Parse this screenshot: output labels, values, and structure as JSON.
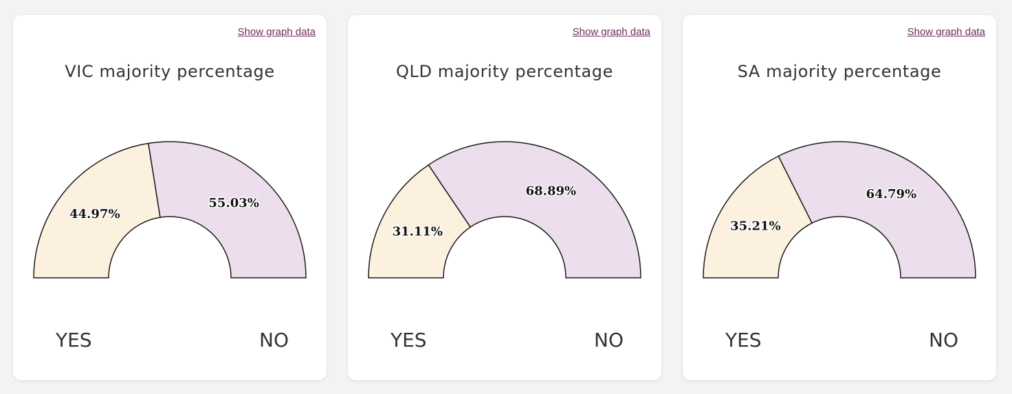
{
  "graph_link_label": "Show graph data",
  "colors": {
    "yes": "#fcf1df",
    "no": "#ecdeed",
    "stroke": "#1a1a1a",
    "link": "#6b2d5c"
  },
  "chart_data": [
    {
      "type": "pie",
      "title": "VIC majority percentage",
      "categories": [
        "YES",
        "NO"
      ],
      "values": [
        44.97,
        55.03
      ],
      "labels": [
        "44.97%",
        "55.03%"
      ]
    },
    {
      "type": "pie",
      "title": "QLD majority percentage",
      "categories": [
        "YES",
        "NO"
      ],
      "values": [
        31.11,
        68.89
      ],
      "labels": [
        "31.11%",
        "68.89%"
      ]
    },
    {
      "type": "pie",
      "title": "SA majority percentage",
      "categories": [
        "YES",
        "NO"
      ],
      "values": [
        35.21,
        64.79
      ],
      "labels": [
        "35.21%",
        "64.79%"
      ]
    }
  ]
}
